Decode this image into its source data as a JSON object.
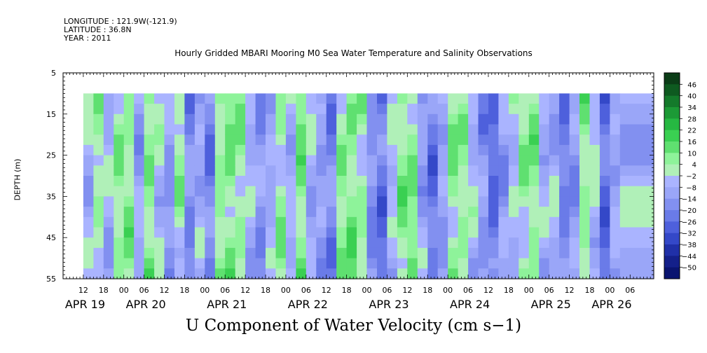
{
  "header": {
    "longitude": "LONGITUDE : 121.9W(-121.9)",
    "latitude": "LATITUDE : 36.8N",
    "year": "YEAR : 2011"
  },
  "chart_data": {
    "type": "heatmap",
    "title": "Hourly Gridded MBARI Mooring M0 Sea Water Temperature and Salinity Observations",
    "xlabel": "",
    "ylabel": "DEPTH (m)",
    "caption": "U Component of Water Velocity (cm s−1)",
    "x_range_hours_from_apr19_00": [
      6,
      157
    ],
    "data_start_hour_from_apr19_00": 12,
    "ylim": [
      55,
      5
    ],
    "data_depth_range": [
      10,
      55
    ],
    "y_ticks": [
      "5",
      "15",
      "25",
      "35",
      "45",
      "55"
    ],
    "y_tick_values": [
      5,
      15,
      25,
      35,
      45,
      55
    ],
    "hour_ticks": [
      {
        "h": 12,
        "label": "12"
      },
      {
        "h": 18,
        "label": "18"
      },
      {
        "h": 24,
        "label": "00"
      },
      {
        "h": 30,
        "label": "06"
      },
      {
        "h": 36,
        "label": "12"
      },
      {
        "h": 42,
        "label": "18"
      },
      {
        "h": 48,
        "label": "00"
      },
      {
        "h": 54,
        "label": "06"
      },
      {
        "h": 60,
        "label": "12"
      },
      {
        "h": 66,
        "label": "18"
      },
      {
        "h": 72,
        "label": "00"
      },
      {
        "h": 78,
        "label": "06"
      },
      {
        "h": 84,
        "label": "12"
      },
      {
        "h": 90,
        "label": "18"
      },
      {
        "h": 96,
        "label": "00"
      },
      {
        "h": 102,
        "label": "06"
      },
      {
        "h": 108,
        "label": "12"
      },
      {
        "h": 114,
        "label": "18"
      },
      {
        "h": 120,
        "label": "00"
      },
      {
        "h": 126,
        "label": "06"
      },
      {
        "h": 132,
        "label": "12"
      },
      {
        "h": 138,
        "label": "18"
      },
      {
        "h": 144,
        "label": "00"
      },
      {
        "h": 150,
        "label": "06"
      },
      {
        "h": 156,
        "label": "12"
      },
      {
        "h": 162,
        "label": "18"
      },
      {
        "h": 168,
        "label": "00"
      },
      {
        "h": 174,
        "label": "06"
      }
    ],
    "date_labels": [
      {
        "h": 9,
        "label": "APR 19"
      },
      {
        "h": 27,
        "label": "APR 20"
      },
      {
        "h": 51,
        "label": "APR 21"
      },
      {
        "h": 75,
        "label": "APR 22"
      },
      {
        "h": 99,
        "label": "APR 23"
      },
      {
        "h": 123,
        "label": "APR 24"
      },
      {
        "h": 147,
        "label": "APR 25"
      },
      {
        "h": 165,
        "label": "APR 26"
      }
    ],
    "colorbar": {
      "levels": [
        46,
        40,
        34,
        28,
        22,
        16,
        10,
        4,
        -2,
        -8,
        -14,
        -20,
        -26,
        -32,
        -38,
        -44,
        -50
      ],
      "labels": [
        "46",
        "40",
        "34",
        "28",
        "22",
        "16",
        "10",
        "4",
        "−2",
        "−8",
        "−14",
        "−20",
        "−26",
        "−32",
        "−38",
        "−44",
        "−50"
      ],
      "colors": [
        "#0b3d17",
        "#0e5a20",
        "#147a2b",
        "#1c9a36",
        "#26b842",
        "#3ad052",
        "#5fe070",
        "#8ef39a",
        "#b0f0b8",
        "#aab4ff",
        "#9aa6f8",
        "#8290f0",
        "#6a7be8",
        "#4e60dc",
        "#3448c8",
        "#2030a8",
        "#14208a",
        "#0a1470"
      ]
    },
    "values_columns_by_hour": [
      {
        "h": 12,
        "u": -6
      },
      {
        "h": 15,
        "u": 2
      },
      {
        "h": 18,
        "u": -8
      },
      {
        "h": 21,
        "u": 4
      },
      {
        "h": 24,
        "u": 6
      },
      {
        "h": 27,
        "u": -10
      },
      {
        "h": 30,
        "u": 8
      },
      {
        "h": 33,
        "u": -4
      },
      {
        "h": 36,
        "u": -14
      },
      {
        "h": 39,
        "u": 2
      },
      {
        "h": 42,
        "u": -18
      },
      {
        "h": 45,
        "u": -10
      },
      {
        "h": 48,
        "u": -20
      },
      {
        "h": 51,
        "u": 6
      },
      {
        "h": 54,
        "u": 8
      },
      {
        "h": 57,
        "u": 4
      },
      {
        "h": 60,
        "u": -8
      },
      {
        "h": 63,
        "u": -16
      },
      {
        "h": 66,
        "u": -10
      },
      {
        "h": 69,
        "u": 4
      },
      {
        "h": 72,
        "u": -6
      },
      {
        "h": 75,
        "u": 10
      },
      {
        "h": 78,
        "u": -8
      },
      {
        "h": 81,
        "u": -14
      },
      {
        "h": 84,
        "u": -20
      },
      {
        "h": 87,
        "u": 6
      },
      {
        "h": 90,
        "u": 8
      },
      {
        "h": 93,
        "u": 4
      },
      {
        "h": 96,
        "u": -16
      },
      {
        "h": 99,
        "u": -24
      },
      {
        "h": 102,
        "u": -6
      },
      {
        "h": 105,
        "u": 6
      },
      {
        "h": 108,
        "u": 8
      },
      {
        "h": 111,
        "u": -12
      },
      {
        "h": 114,
        "u": -22
      },
      {
        "h": 117,
        "u": -10
      },
      {
        "h": 120,
        "u": 6
      },
      {
        "h": 123,
        "u": 4
      },
      {
        "h": 126,
        "u": -6
      },
      {
        "h": 129,
        "u": -16
      },
      {
        "h": 132,
        "u": -24
      },
      {
        "h": 135,
        "u": -12
      },
      {
        "h": 138,
        "u": -4
      },
      {
        "h": 141,
        "u": 4
      },
      {
        "h": 144,
        "u": 6
      },
      {
        "h": 147,
        "u": -10
      },
      {
        "h": 150,
        "u": -8
      },
      {
        "h": 153,
        "u": -20
      },
      {
        "h": 156,
        "u": -14
      },
      {
        "h": 159,
        "u": 6
      },
      {
        "h": 162,
        "u": -4
      },
      {
        "h": 165,
        "u": -26
      },
      {
        "h": 168,
        "u": -12
      },
      {
        "h": 171,
        "u": -8
      }
    ]
  }
}
